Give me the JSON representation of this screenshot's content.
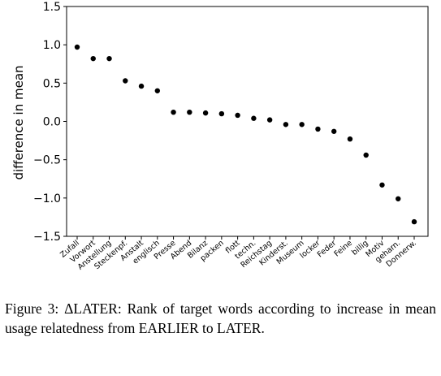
{
  "chart_data": {
    "type": "scatter",
    "ylabel": "difference in mean",
    "xlabel": "",
    "ylim": [
      -1.5,
      1.5
    ],
    "yticks": [
      "1.5",
      "1.0",
      "0.5",
      "0.0",
      "−0.5",
      "−1.0",
      "−1.5"
    ],
    "yticks_values": [
      1.5,
      1.0,
      0.5,
      0.0,
      -0.5,
      -1.0,
      -1.5
    ],
    "grid": false,
    "categories": [
      "Zufall",
      "Vorwort",
      "Anstellung",
      "Steckenpf.",
      "Anstalt",
      "englisch",
      "Presse",
      "Abend",
      "Bilanz",
      "packen",
      "flott",
      "techn.",
      "Reichstag",
      "Kinderst.",
      "Museum",
      "locker",
      "Feder",
      "Feine",
      "billig",
      "Motiv",
      "geharn.",
      "Donnerw."
    ],
    "values": [
      0.97,
      0.82,
      0.82,
      0.53,
      0.46,
      0.4,
      0.12,
      0.12,
      0.11,
      0.1,
      0.08,
      0.04,
      0.02,
      -0.04,
      -0.04,
      -0.1,
      -0.13,
      -0.23,
      -0.44,
      -0.83,
      -1.01,
      -1.31
    ],
    "point_color": "#000000"
  },
  "caption": {
    "label": "Figure 3:",
    "delta": "Δ",
    "later": "LATER",
    "text1": ": Rank of target words according to increase in mean usage relatedness from ",
    "earlier": "EARLIER",
    "to": " to ",
    "later2": "LATER",
    "end": "."
  }
}
